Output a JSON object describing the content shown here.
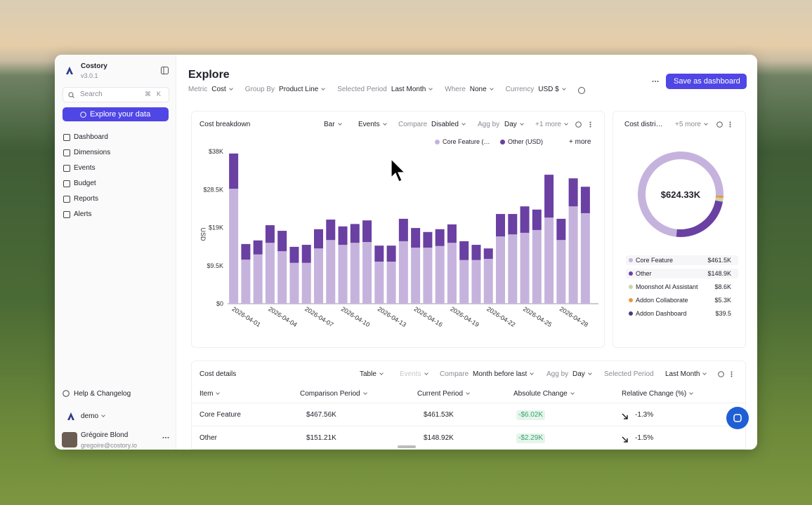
{
  "sidebar": {
    "app_name": "Costory",
    "version": "v3.0.1",
    "search": "Search",
    "shortcut": [
      "⌘",
      "K"
    ],
    "cta": "Explore your data",
    "nav": [
      "Dashboard",
      "Dimensions",
      "Events",
      "Budget",
      "Reports",
      "Alerts"
    ],
    "help": "Help & Changelog",
    "workspace": "demo",
    "user_name": "Grégoire Blond",
    "user_email": "gregoire@costory.io"
  },
  "header": {
    "title": "Explore",
    "filters": [
      {
        "label": "Metric",
        "value": "Cost"
      },
      {
        "label": "Group By",
        "value": "Product Line"
      },
      {
        "label": "Selected Period",
        "value": "Last Month"
      },
      {
        "label": "Where",
        "value": "None"
      },
      {
        "label": "Currency",
        "value": "USD $"
      }
    ],
    "save_button": "Save as dashboard"
  },
  "breakdown": {
    "title": "Cost breakdown",
    "view": "Bar",
    "events": "Events",
    "compare": {
      "label": "Compare",
      "value": "Disabled"
    },
    "agg": {
      "label": "Agg by",
      "value": "Day"
    },
    "more": "+1 more",
    "legend_more": "+ more"
  },
  "distribution": {
    "title": "Cost distri…",
    "more": "+5 more"
  },
  "details": {
    "title": "Cost details",
    "view": "Table",
    "events": "Events",
    "compare": {
      "label": "Compare",
      "value": "Month before last"
    },
    "agg": {
      "label": "Agg by",
      "value": "Day"
    },
    "period": {
      "label": "Selected Period",
      "value": "Last Month"
    },
    "table": {
      "columns": [
        "Item",
        "Comparison Period",
        "Current Period",
        "Absolute Change",
        "Relative Change (%)"
      ],
      "rows": [
        [
          "Core Feature",
          "$467.56K",
          "$461.53K",
          "-$6.02K",
          "-1.3%"
        ],
        [
          "Other",
          "$151.21K",
          "$148.92K",
          "-$2.29K",
          "-1.5%"
        ]
      ]
    }
  },
  "chart_data": [
    {
      "type": "bar",
      "stacked": true,
      "y_label": "USD",
      "categories": [
        "2026-04-01",
        null,
        null,
        "2026-04-04",
        null,
        null,
        "2026-04-07",
        null,
        null,
        "2026-04-10",
        null,
        null,
        "2026-04-13",
        null,
        null,
        "2026-04-16",
        null,
        null,
        "2026-04-19",
        null,
        null,
        "2026-04-22",
        null,
        null,
        "2026-04-25",
        null,
        null,
        "2026-04-28",
        null,
        null
      ],
      "series": [
        {
          "name": "Core Feature (USD)",
          "color": "#c5b3dd",
          "values": [
            28700,
            11000,
            12300,
            15200,
            13100,
            10200,
            10200,
            13800,
            15900,
            14700,
            15200,
            15400,
            10500,
            10500,
            15600,
            14000,
            14000,
            14400,
            15200,
            10900,
            10900,
            11200,
            16800,
            17300,
            17700,
            18400,
            21500,
            15900,
            24300,
            22600
          ]
        },
        {
          "name": "Other (USD)",
          "color": "#6a40a3",
          "values": [
            8800,
            3900,
            3500,
            4400,
            5100,
            4000,
            4500,
            4800,
            5100,
            4600,
            4700,
            5400,
            4000,
            4000,
            5600,
            4900,
            3900,
            4200,
            4600,
            4700,
            3800,
            2600,
            5600,
            5100,
            6600,
            5100,
            10700,
            5300,
            7000,
            6600
          ]
        }
      ],
      "ylim": [
        0,
        38000
      ],
      "yticks": [
        {
          "value": 0,
          "label": "$0"
        },
        {
          "value": 9500,
          "label": "$9.5K"
        },
        {
          "value": 19000,
          "label": "$19K"
        },
        {
          "value": 28500,
          "label": "$28.5K"
        },
        {
          "value": 38000,
          "label": "$38K"
        }
      ],
      "grid": false
    },
    {
      "type": "pie",
      "donut": true,
      "center_label": "$624.33K",
      "labels": [
        "Core Feature",
        "Other",
        "Moonshot AI Assistant",
        "Addon Collaborate",
        "Addon Dashboard"
      ],
      "values": [
        461500,
        148900,
        8600,
        5300,
        39.5
      ],
      "value_labels": [
        "$461.5K",
        "$148.9K",
        "$8.6K",
        "$5.3K",
        "$39.5"
      ],
      "colors": [
        "#c5b3dd",
        "#6a40a3",
        "#c9d3a9",
        "#e8983a",
        "#4b3a7d"
      ]
    }
  ]
}
